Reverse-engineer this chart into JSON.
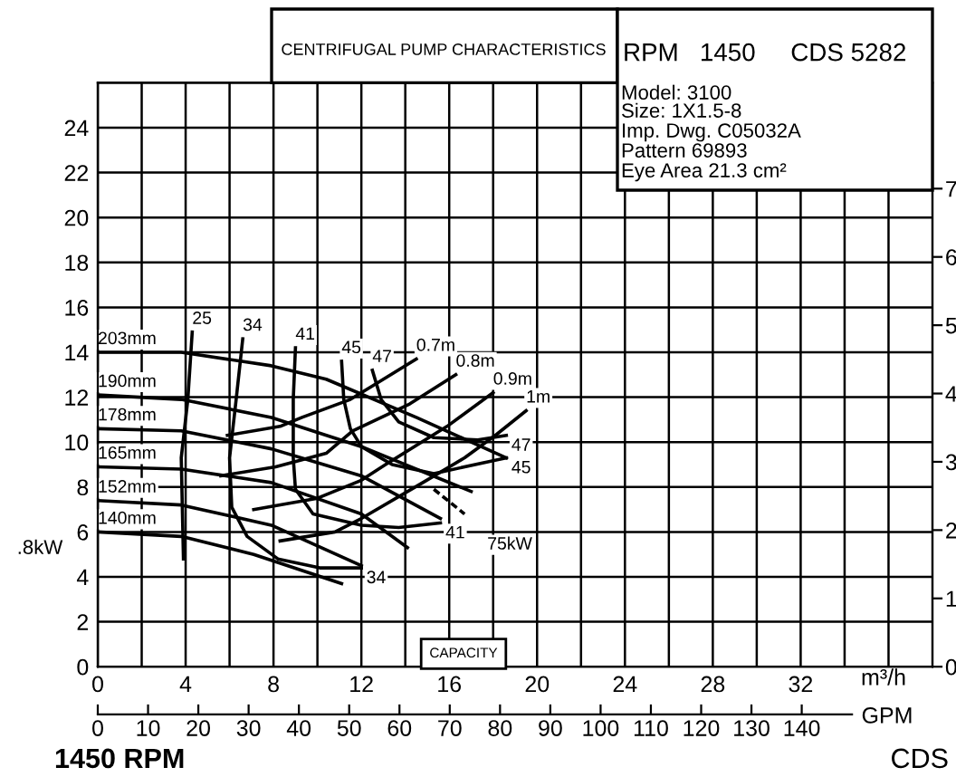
{
  "chart_data": {
    "type": "line",
    "title": "CENTRIFUGAL PUMP CHARACTERISTICS",
    "subtitle": "RPM   1450     CDS 5282",
    "xlabel": "m³/h",
    "x2label": "GPM",
    "xlim": [
      0,
      38
    ],
    "x2lim": [
      0,
      166
    ],
    "ylim": [
      0,
      26
    ],
    "y2lim": [
      0,
      8.55
    ],
    "xticks": [
      0,
      {
        "value": 2,
        "label": null
      },
      4,
      {
        "value": 6,
        "label": null
      },
      8,
      {
        "value": 10,
        "label": null
      },
      12,
      {
        "value": 14,
        "label": null
      },
      16,
      {
        "value": 18,
        "label": null
      },
      20,
      {
        "value": 22,
        "label": null
      },
      24,
      {
        "value": 26,
        "label": null
      },
      28,
      {
        "value": 30,
        "label": null
      },
      32,
      {
        "value": 34,
        "label": null
      },
      {
        "value": 36,
        "label": null
      }
    ],
    "x2ticks": [
      0,
      10,
      20,
      30,
      40,
      50,
      60,
      70,
      80,
      90,
      100,
      110,
      120,
      130,
      140
    ],
    "yticks": [
      0,
      2,
      4,
      6,
      8,
      10,
      12,
      14,
      16,
      18,
      20,
      22,
      24
    ],
    "y2ticks": [
      0,
      1,
      2,
      3,
      4,
      5,
      6,
      7
    ],
    "grid": true,
    "marker": "none",
    "series": [
      {
        "name": "203mm",
        "color": "#000000",
        "x": [
          0,
          3.8,
          7.9,
          10.4,
          14.5,
          18.6
        ],
        "values": [
          14.0,
          14.0,
          13.4,
          12.8,
          11.1,
          9.3
        ]
      },
      {
        "name": "190mm",
        "color": "#000000",
        "x": [
          0,
          3.8,
          7.9,
          12.0,
          17.0
        ],
        "values": [
          12.1,
          11.9,
          11.1,
          9.8,
          7.8
        ]
      },
      {
        "name": "178mm",
        "color": "#000000",
        "x": [
          0,
          3.8,
          7.9,
          12.0,
          15.6
        ],
        "values": [
          10.6,
          10.5,
          9.7,
          8.5,
          6.6
        ]
      },
      {
        "name": "165mm",
        "color": "#000000",
        "x": [
          0,
          3.8,
          7.9,
          12.0,
          14.1
        ],
        "values": [
          8.9,
          8.8,
          8.2,
          6.8,
          5.3
        ]
      },
      {
        "name": "152mm",
        "color": "#000000",
        "x": [
          0,
          3.8,
          7.9,
          12.0
        ],
        "values": [
          7.4,
          7.2,
          6.3,
          4.5
        ]
      },
      {
        "name": "140mm",
        "color": "#000000",
        "x": [
          0,
          3.8,
          7.1,
          11.1
        ],
        "values": [
          6.0,
          5.8,
          5.0,
          3.7
        ]
      },
      {
        "name": "25",
        "color": "#000000",
        "x": [
          4.3,
          4.1,
          3.8,
          3.9
        ],
        "values": [
          14.9,
          11.9,
          9.3,
          4.8
        ]
      },
      {
        "name": "34",
        "color": "#000000",
        "x": [
          6.6,
          6.3,
          6.0,
          6.1,
          6.8,
          8.2,
          10.1,
          12.0
        ],
        "values": [
          14.6,
          11.9,
          9.3,
          7.1,
          5.8,
          4.8,
          4.4,
          4.4
        ]
      },
      {
        "name": "41",
        "color": "#000000",
        "x": [
          9.0,
          8.9,
          8.9,
          9.0,
          9.8,
          12.0,
          13.7,
          15.6
        ],
        "values": [
          14.2,
          11.9,
          9.3,
          7.9,
          6.8,
          6.3,
          6.2,
          6.4
        ]
      },
      {
        "name": "45",
        "color": "#000000",
        "x": [
          11.1,
          11.2,
          11.5,
          12.0,
          13.4,
          15.3,
          18.6
        ],
        "values": [
          13.6,
          11.9,
          10.6,
          9.8,
          9.0,
          8.6,
          9.3
        ]
      },
      {
        "name": "47",
        "color": "#000000",
        "x": [
          12.5,
          12.9,
          13.7,
          15.3,
          17.3,
          18.6
        ],
        "values": [
          13.2,
          11.9,
          10.9,
          10.2,
          10.1,
          10.3
        ]
      },
      {
        "name": "0.7m",
        "color": "#000000",
        "x": [
          14.5,
          12.5,
          11.5,
          9.3,
          8.3,
          5.9
        ],
        "values": [
          13.7,
          12.5,
          11.9,
          11.1,
          10.7,
          10.3
        ]
      },
      {
        "name": "0.8m",
        "color": "#000000",
        "x": [
          16.3,
          14.2,
          11.6,
          10.4,
          8.1,
          5.6
        ],
        "values": [
          13.0,
          11.7,
          10.5,
          9.5,
          8.9,
          8.5
        ]
      },
      {
        "name": "0.9m",
        "color": "#000000",
        "x": [
          18.0,
          15.9,
          13.1,
          12.0,
          10.0,
          7.1
        ],
        "values": [
          12.2,
          10.7,
          9.0,
          8.3,
          7.5,
          7.0
        ]
      },
      {
        "name": "1m",
        "color": "#000000",
        "x": [
          19.5,
          18.1,
          16.7,
          14.8,
          12.0,
          10.8,
          8.3
        ],
        "values": [
          11.4,
          10.3,
          9.3,
          8.2,
          6.6,
          6.0,
          5.6
        ]
      },
      {
        "color": "#000000",
        "line_style": "dashed",
        "x": [
          15.3,
          16.7
        ],
        "values": [
          7.9,
          6.8
        ]
      }
    ],
    "annotations": [
      "Model: 3100",
      "Size: 1X1.5-8",
      "Imp. Dwg. C05032A",
      "Pattern 69893",
      "Eye Area 21.3 cm²",
      ".8kW",
      "CAPACITY",
      "1450 RPM",
      "CDS",
      "34",
      "41",
      "45",
      "47",
      {
        "text": "75kW",
        "x": 16.7,
        "y": 6.8
      }
    ]
  }
}
